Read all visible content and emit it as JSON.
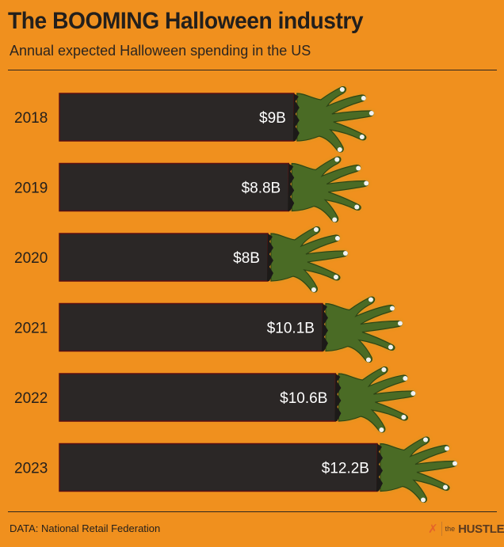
{
  "header": {
    "title": "The BOOMING Halloween industry",
    "subtitle": "Annual expected Halloween spending in the US"
  },
  "footer": {
    "source": "DATA: National Retail Federation",
    "logo_the": "the",
    "logo_name": "HUSTLE"
  },
  "colors": {
    "background": "#f0901e",
    "bar": "#2b2726",
    "bar_edge": "#5c0f12",
    "hand": "#4a6b25",
    "hand_glow": "#a5a529",
    "fingernail": "#f2f2f2",
    "label": "#ffffff"
  },
  "icons": {
    "hand": "zombie-hand-icon",
    "logo": "hustle-logo-icon"
  },
  "chart_data": {
    "type": "bar",
    "orientation": "horizontal",
    "categories": [
      "2018",
      "2019",
      "2020",
      "2021",
      "2022",
      "2023"
    ],
    "values": [
      9,
      8.8,
      8,
      10.1,
      10.6,
      12.2
    ],
    "data_labels": [
      "$9B",
      "$8.8B",
      "$8B",
      "$10.1B",
      "$10.6B",
      "$12.2B"
    ],
    "title": "The BOOMING Halloween industry",
    "subtitle": "Annual expected Halloween spending in the US",
    "unit": "billion USD",
    "xlim": [
      0,
      12.2
    ],
    "grid": false,
    "legend": "none"
  }
}
